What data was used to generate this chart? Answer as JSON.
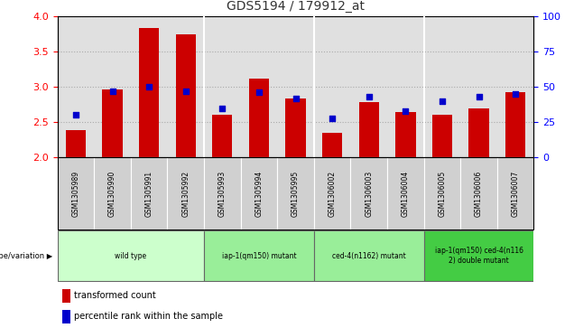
{
  "title": "GDS5194 / 179912_at",
  "samples": [
    "GSM1305989",
    "GSM1305990",
    "GSM1305991",
    "GSM1305992",
    "GSM1305993",
    "GSM1305994",
    "GSM1305995",
    "GSM1306002",
    "GSM1306003",
    "GSM1306004",
    "GSM1306005",
    "GSM1306006",
    "GSM1306007"
  ],
  "transformed_count": [
    2.39,
    2.97,
    3.83,
    3.75,
    2.6,
    3.12,
    2.83,
    2.35,
    2.78,
    2.64,
    2.6,
    2.7,
    2.92
  ],
  "percentile_rank": [
    30,
    47,
    50,
    47,
    35,
    46,
    42,
    28,
    43,
    33,
    40,
    43,
    45
  ],
  "bar_color": "#cc0000",
  "dot_color": "#0000cc",
  "ylim_left": [
    2.0,
    4.0
  ],
  "ylim_right": [
    0,
    100
  ],
  "yticks_left": [
    2.0,
    2.5,
    3.0,
    3.5,
    4.0
  ],
  "yticks_right": [
    0,
    25,
    50,
    75,
    100
  ],
  "groups": [
    {
      "label": "wild type",
      "samples": [
        0,
        1,
        2,
        3
      ],
      "color": "#ccffcc"
    },
    {
      "label": "iap-1(qm150) mutant",
      "samples": [
        4,
        5,
        6
      ],
      "color": "#99ee99"
    },
    {
      "label": "ced-4(n1162) mutant",
      "samples": [
        7,
        8,
        9
      ],
      "color": "#99ee99"
    },
    {
      "label": "iap-1(qm150) ced-4(n116\n2) double mutant",
      "samples": [
        10,
        11,
        12
      ],
      "color": "#44cc44"
    }
  ],
  "xlabel_genotype": "genotype/variation",
  "legend_bar": "transformed count",
  "legend_dot": "percentile rank within the sample",
  "plot_bg": "#e0e0e0",
  "bg_white": "#ffffff",
  "title_color": "#333333",
  "tick_label_bg": "#d0d0d0"
}
